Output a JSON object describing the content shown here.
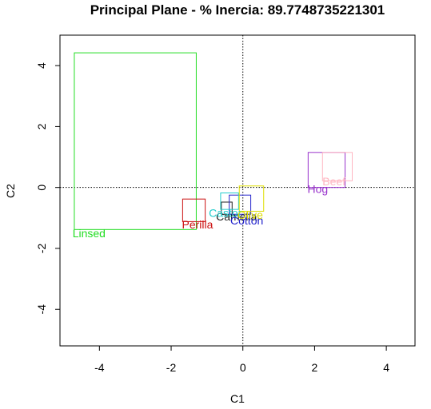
{
  "chart_data": {
    "type": "scatter",
    "title": "Principal Plane - % Inercia: 89.7748735221301",
    "xlabel": "C1",
    "ylabel": "C2",
    "xlim": [
      -5.1,
      4.8
    ],
    "ylim": [
      -5.2,
      5.0
    ],
    "x_ticks": [
      -4,
      -2,
      0,
      2,
      4
    ],
    "y_ticks": [
      -4,
      -2,
      0,
      2,
      4
    ],
    "reference_lines": {
      "x": 0,
      "y": 0,
      "style": "dotted"
    },
    "grid": false,
    "series": [
      {
        "name": "Linsed",
        "label": "Linsed",
        "color": "#22dd22",
        "x_range": [
          -4.7,
          -1.3
        ],
        "y_range": [
          -1.38,
          4.42
        ],
        "label_at": [
          -4.75,
          -1.5
        ]
      },
      {
        "name": "Perilla",
        "label": "Perilla",
        "color": "#cc1111",
        "x_range": [
          -1.68,
          -1.05
        ],
        "y_range": [
          -1.12,
          -0.38
        ],
        "label_at": [
          -1.7,
          -1.22
        ]
      },
      {
        "name": "Camelia",
        "label": "Camelia",
        "color": "#222222",
        "x_range": [
          -0.6,
          -0.3
        ],
        "y_range": [
          -0.88,
          -0.48
        ],
        "label_at": [
          -0.75,
          -0.95
        ]
      },
      {
        "name": "Cotton",
        "label": "Cotton",
        "color": "#2222cc",
        "x_range": [
          -0.38,
          0.22
        ],
        "y_range": [
          -0.88,
          -0.25
        ],
        "label_at": [
          -0.35,
          -1.08
        ]
      },
      {
        "name": "Castor",
        "label": "Castor",
        "color": "#22cccc",
        "x_range": [
          -0.62,
          -0.12
        ],
        "y_range": [
          -0.72,
          -0.18
        ],
        "label_at": [
          -0.95,
          -0.83
        ]
      },
      {
        "name": "Olive",
        "label": "Olive",
        "color": "#dddd00",
        "x_range": [
          -0.1,
          0.58
        ],
        "y_range": [
          -0.78,
          0.05
        ],
        "label_at": [
          -0.15,
          -0.9
        ]
      },
      {
        "name": "Hog",
        "label": "Hog",
        "color": "#9933cc",
        "x_range": [
          1.82,
          2.85
        ],
        "y_range": [
          0.0,
          1.15
        ],
        "label_at": [
          1.8,
          -0.05
        ]
      },
      {
        "name": "Beef",
        "label": "Beef",
        "color": "#ffb6c1",
        "x_range": [
          2.22,
          3.05
        ],
        "y_range": [
          0.22,
          1.15
        ],
        "label_at": [
          2.22,
          0.2
        ]
      }
    ]
  }
}
